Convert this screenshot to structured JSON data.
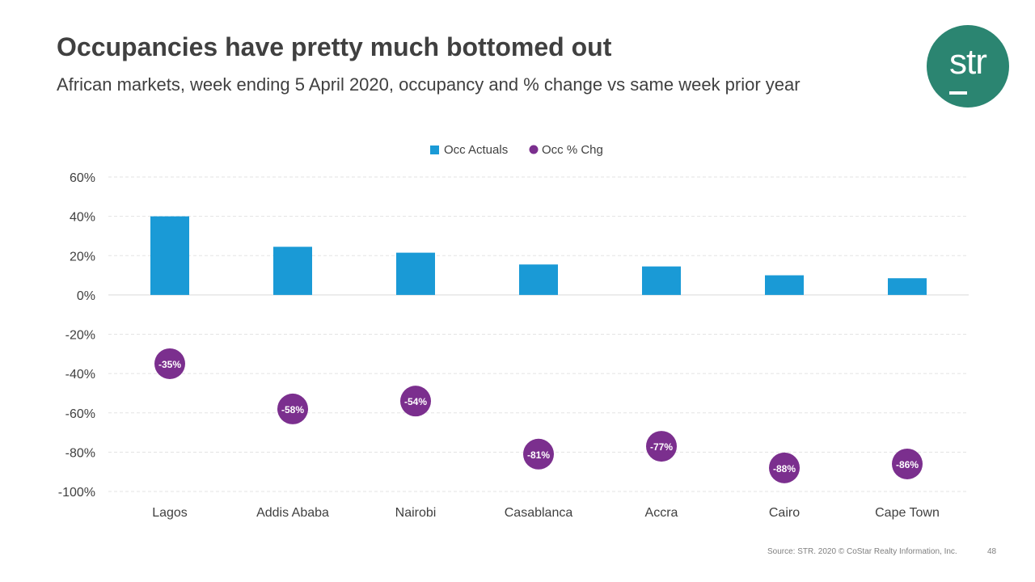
{
  "slide": {
    "title": "Occupancies have pretty much bottomed out",
    "subtitle": "African markets, week ending 5 April 2020, occupancy and % change vs same week prior year",
    "logo_text": "str",
    "source": "Source: STR. 2020 © CoStar Realty Information, Inc.",
    "page_number": "48"
  },
  "colors": {
    "bar": "#1a9ad6",
    "marker": "#7b2f8e",
    "title": "#404040",
    "logo": "#2b8571"
  },
  "chart_data": {
    "type": "bar",
    "title": "",
    "xlabel": "",
    "ylabel": "",
    "ylim": [
      -100,
      60
    ],
    "yticks": [
      60,
      40,
      20,
      0,
      -20,
      -40,
      -60,
      -80,
      -100
    ],
    "ytick_labels": [
      "60%",
      "40%",
      "20%",
      "0%",
      "-20%",
      "-40%",
      "-60%",
      "-80%",
      "-100%"
    ],
    "grid": true,
    "legend_position": "top-center",
    "categories": [
      "Lagos",
      "Addis Ababa",
      "Nairobi",
      "Casablanca",
      "Accra",
      "Cairo",
      "Cape Town"
    ],
    "series": [
      {
        "name": "Occ Actuals",
        "kind": "bar",
        "values": [
          40,
          24.5,
          21.5,
          15.5,
          14.5,
          10,
          8.5
        ]
      },
      {
        "name": "Occ % Chg",
        "kind": "marker",
        "values": [
          -35,
          -58,
          -54,
          -81,
          -77,
          -88,
          -86
        ],
        "labels": [
          "-35%",
          "-58%",
          "-54%",
          "-81%",
          "-77%",
          "-88%",
          "-86%"
        ]
      }
    ]
  }
}
